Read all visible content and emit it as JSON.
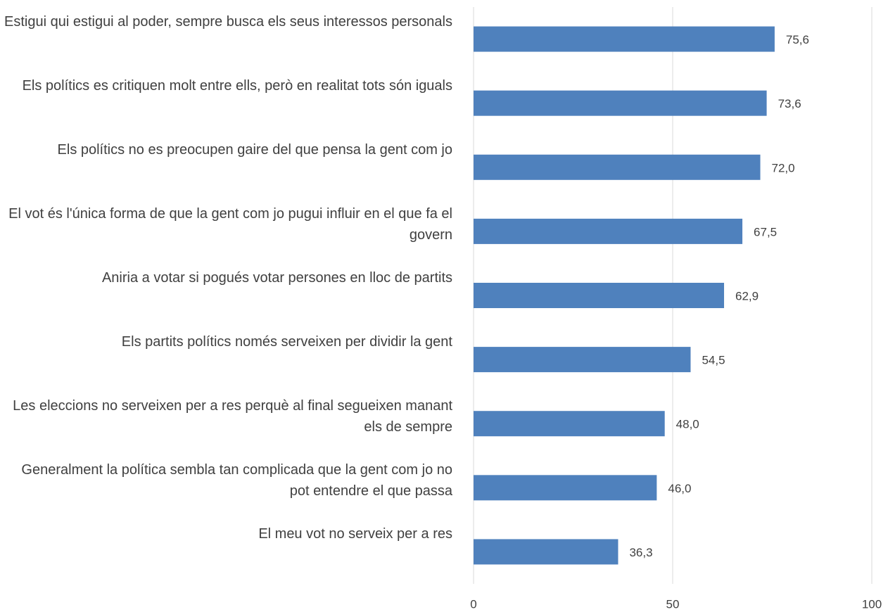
{
  "chart_data": {
    "type": "bar",
    "orientation": "horizontal",
    "categories": [
      "Estigui qui estigui al poder, sempre busca els seus interessos personals",
      "Els polítics es critiquen molt entre ells, però en realitat tots són iguals",
      "Els polítics no es preocupen gaire del que pensa la gent com jo",
      "El vot és l'única forma de que la gent com jo pugui influir en el que fa el govern",
      "Aniria a votar si pogués votar persones en lloc de partits",
      "Els partits polítics només serveixen per dividir la gent",
      "Les eleccions no serveixen per a res perquè al final segueixen manant els de sempre",
      "Generalment la política sembla tan complicada que la gent com jo no pot entendre el que passa",
      "El meu vot no serveix per a res"
    ],
    "values": [
      75.6,
      73.6,
      72.0,
      67.5,
      62.9,
      54.5,
      48.0,
      46.0,
      36.3
    ],
    "value_labels": [
      "75,6",
      "73,6",
      "72,0",
      "67,5",
      "62,9",
      "54,5",
      "48,0",
      "46,0",
      "36,3"
    ],
    "color": "#4f81bd",
    "xlim": [
      0,
      100
    ],
    "xticks": [
      0,
      50,
      100
    ],
    "grid": true
  }
}
